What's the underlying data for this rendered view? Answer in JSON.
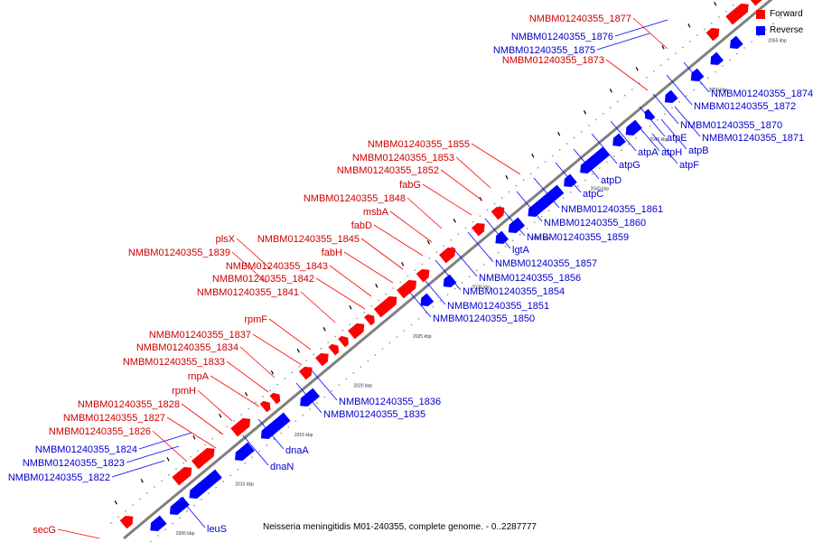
{
  "caption": "Neisseria meningitidis M01-240355, complete genome. - 0..2287777",
  "legend": {
    "forward": "Forward",
    "reverse": "Reverse"
  },
  "colors": {
    "forward": "#ff0000",
    "reverse": "#0000ff",
    "backbone": "#808080",
    "text_forward": "#cc0000",
    "text_reverse": "#0000cc"
  },
  "kbp_ticks": [
    "2005 kbp",
    "2010 kbp",
    "2015 kbp",
    "2020 kbp",
    "2025 kbp",
    "2030 kbp",
    "2035 kbp",
    "2040 kbp",
    "2045 kbp",
    "2050 kbp",
    "2055 kbp"
  ],
  "forward_labels": [
    "NMBM01240355_1877",
    "NMBM01240355_1873",
    "NMBM01240355_1855",
    "NMBM01240355_1853",
    "NMBM01240355_1852",
    "fabG",
    "NMBM01240355_1848",
    "msbA",
    "fabD",
    "plsX",
    "NMBM01240355_1845",
    "fabH",
    "NMBM01240355_1839",
    "NMBM01240355_1843",
    "NMBM01240355_1842",
    "NMBM01240355_1841",
    "rpmF",
    "NMBM01240355_1837",
    "NMBM01240355_1834",
    "NMBM01240355_1833",
    "rnpA",
    "rpmH",
    "NMBM01240355_1828",
    "NMBM01240355_1827",
    "NMBM01240355_1826",
    "secG"
  ],
  "reverse_labels_left": [
    "NMBM01240355_1876",
    "NMBM01240355_1875",
    "NMBM01240355_1824",
    "NMBM01240355_1823",
    "NMBM01240355_1822"
  ],
  "reverse_labels_right": [
    "NMBM01240355_1874",
    "NMBM01240355_1872",
    "NMBM01240355_1870",
    "NMBM01240355_1871",
    "atpE",
    "atpB",
    "atpA",
    "atpH",
    "atpF",
    "atpG",
    "atpD",
    "atpC",
    "NMBM01240355_1861",
    "NMBM01240355_1860",
    "NMBM01240355_1859",
    "lgtA",
    "NMBM01240355_1857",
    "NMBM01240355_1856",
    "NMBM01240355_1854",
    "NMBM01240355_1851",
    "NMBM01240355_1850",
    "NMBM01240355_1836",
    "NMBM01240355_1835",
    "dnaA",
    "dnaN",
    "leuS"
  ]
}
